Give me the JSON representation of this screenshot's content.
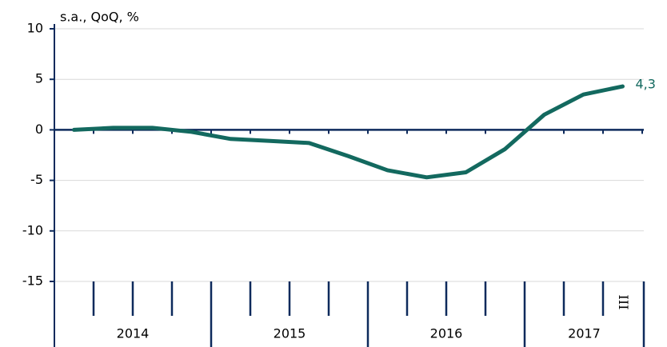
{
  "chart_data": {
    "type": "line",
    "y_label": "s.a., QoQ, %",
    "categories": [
      null,
      null,
      null,
      null,
      null,
      null,
      null,
      null,
      null,
      null,
      null,
      null,
      null,
      null,
      "III"
    ],
    "year_groups": [
      "2014",
      "2015",
      "2016",
      "2017"
    ],
    "series": [
      {
        "name": null,
        "color": "#13695f",
        "values": [
          0.0,
          0.2,
          0.2,
          -0.2,
          -0.9,
          -1.1,
          -1.3,
          -2.6,
          -4.0,
          -4.7,
          -4.2,
          -1.9,
          1.5,
          3.5,
          4.3
        ],
        "value_labels": [
          null,
          null,
          null,
          null,
          null,
          null,
          null,
          null,
          null,
          null,
          null,
          null,
          null,
          null,
          "4,3"
        ]
      }
    ],
    "ylim": [
      -15,
      10
    ],
    "yticks": [
      -15,
      -10,
      -5,
      0,
      5,
      10
    ],
    "grid": true
  }
}
